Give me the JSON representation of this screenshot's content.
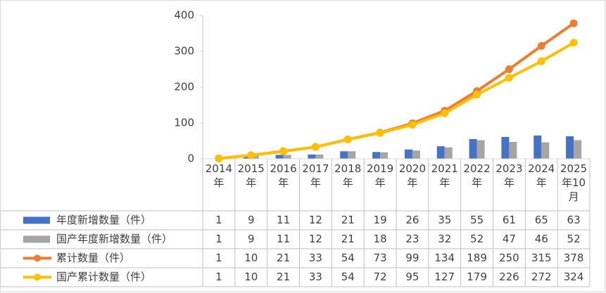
{
  "chart_data": {
    "type": "bar",
    "categories": [
      "2014年",
      "2015年",
      "2016年",
      "2017年",
      "2018年",
      "2019年",
      "2020年",
      "2021年",
      "2022年",
      "2023年",
      "2024年",
      "2025年10月"
    ],
    "series": [
      {
        "name": "年度新增数量（件）",
        "type": "bar",
        "color": "#4472c4",
        "values": [
          1,
          9,
          11,
          12,
          21,
          19,
          26,
          35,
          55,
          61,
          65,
          63
        ]
      },
      {
        "name": "国产年度新增数量（件）",
        "type": "bar",
        "color": "#a5a5a5",
        "values": [
          1,
          9,
          11,
          12,
          21,
          18,
          23,
          32,
          52,
          47,
          46,
          52
        ]
      },
      {
        "name": "累计数量（件）",
        "type": "line",
        "color": "#ed7d31",
        "values": [
          1,
          10,
          21,
          33,
          54,
          73,
          99,
          134,
          189,
          250,
          315,
          378
        ]
      },
      {
        "name": "国产累计数量（件）",
        "type": "line",
        "color": "#ffc000",
        "values": [
          1,
          10,
          21,
          33,
          54,
          72,
          95,
          127,
          179,
          226,
          272,
          324
        ]
      }
    ],
    "ylim": [
      0,
      400
    ],
    "yticks": [
      0,
      100,
      200,
      300,
      400
    ],
    "grid": false
  }
}
